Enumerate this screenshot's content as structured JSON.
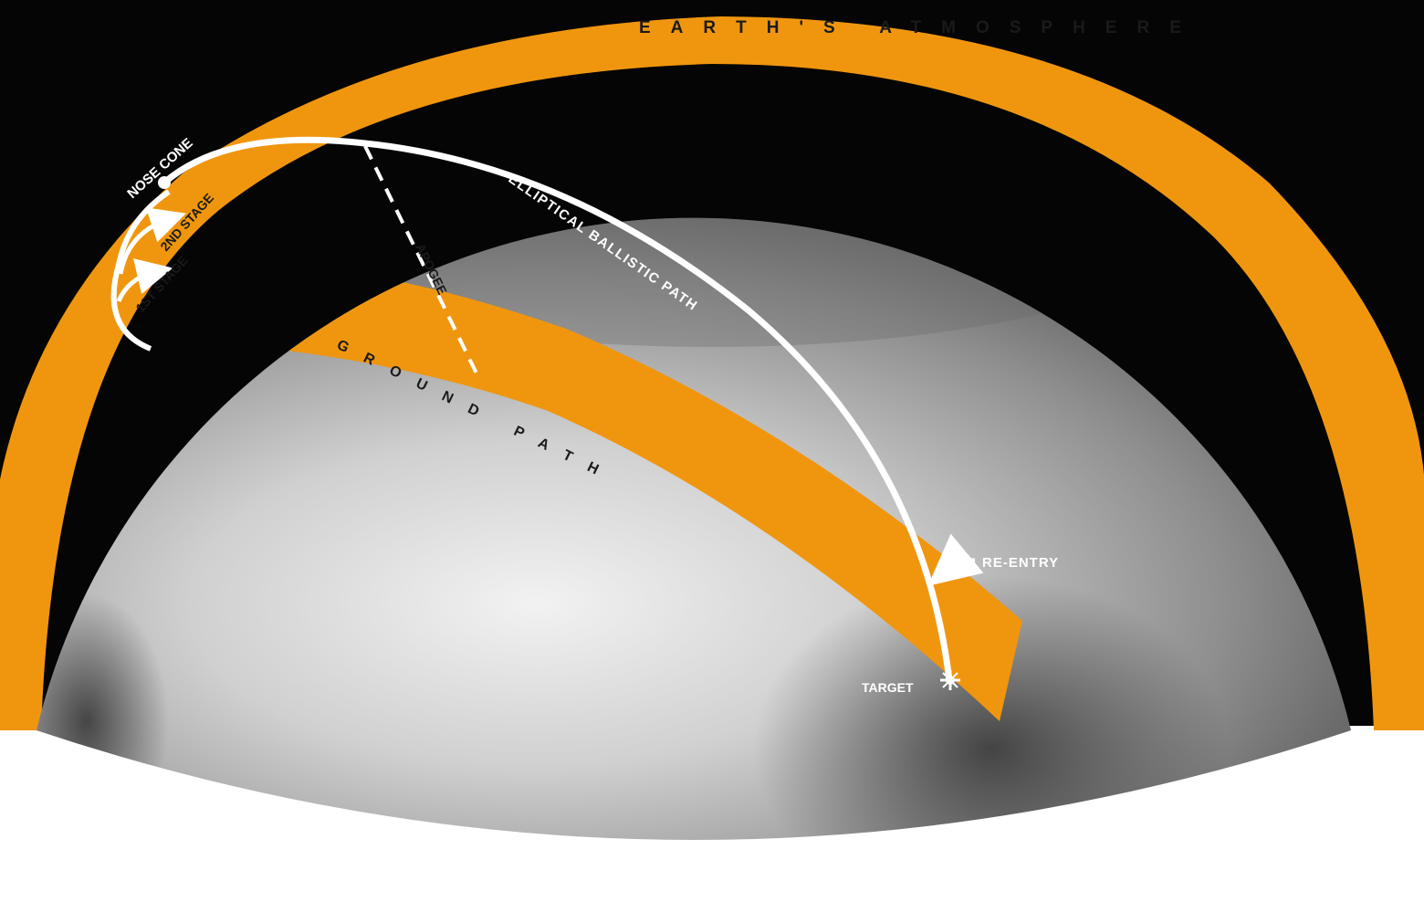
{
  "labels": {
    "atmosphere": "EARTH'S ATMOSPHERE",
    "nose_cone": "NOSE CONE",
    "second_stage": "2ND STAGE",
    "first_stage": "1ST STAGE",
    "trajectory": "ELLIPTICAL BALLISTIC PATH",
    "apogee": "APOGEE",
    "ground_path": "GROUND PATH",
    "re_entry": "RE-ENTRY",
    "target": "TARGET"
  },
  "colors": {
    "sky": "#050505",
    "atmosphere": "#f0960e",
    "ground_path": "#f0960e",
    "earth_light": "#e4e4e4",
    "earth_dark": "#3c3c3c",
    "trajectory": "#ffffff",
    "apogee_line": "#ffffff",
    "foreground": "#ffffff"
  }
}
